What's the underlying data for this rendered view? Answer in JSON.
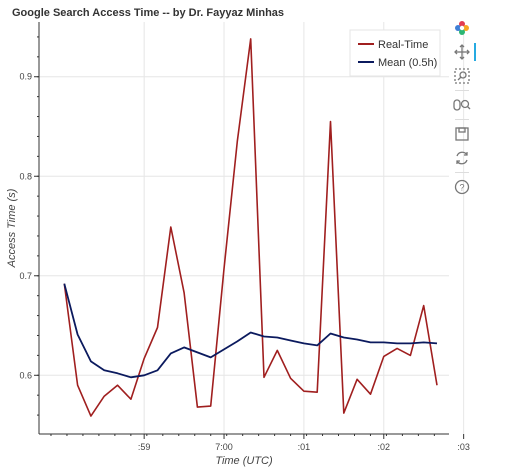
{
  "chart_data": {
    "type": "line",
    "title": "Google Search Access Time -- by Dr. Fayyaz Minhas",
    "xlabel": "Time (UTC)",
    "ylabel": "Access Time (s)",
    "x_ticks": [
      ":59",
      "7:00",
      ":01",
      ":02",
      ":03"
    ],
    "y_ticks": [
      "0.6",
      "0.7",
      "0.8",
      "0.9"
    ],
    "xlim_seconds": [
      -139,
      169
    ],
    "ylim": [
      0.541,
      0.955
    ],
    "grid": true,
    "legend_position": "top-right",
    "series": [
      {
        "name": "Real-Time",
        "color": "#a01f1f",
        "x_seconds": [
          -120,
          -110,
          -100,
          -90,
          -80,
          -70,
          -60,
          -50,
          -40,
          -30,
          -20,
          -10,
          0,
          10,
          20,
          30,
          40,
          50,
          60,
          70,
          80,
          90,
          100,
          110,
          120,
          130,
          140,
          150,
          160
        ],
        "values": [
          0.692,
          0.59,
          0.559,
          0.579,
          0.59,
          0.576,
          0.617,
          0.648,
          0.749,
          0.683,
          0.568,
          0.569,
          0.707,
          0.835,
          0.938,
          0.598,
          0.625,
          0.597,
          0.584,
          0.583,
          0.855,
          0.562,
          0.596,
          0.581,
          0.619,
          0.627,
          0.62,
          0.67,
          0.59
        ]
      },
      {
        "name": "Mean (0.5h)",
        "color": "#0b1a5e",
        "x_seconds": [
          -120,
          -110,
          -100,
          -90,
          -80,
          -70,
          -60,
          -50,
          -40,
          -30,
          -20,
          -10,
          0,
          10,
          20,
          30,
          40,
          50,
          60,
          70,
          80,
          90,
          100,
          110,
          120,
          130,
          140,
          150,
          160
        ],
        "values": [
          0.692,
          0.641,
          0.614,
          0.605,
          0.602,
          0.598,
          0.6,
          0.605,
          0.622,
          0.628,
          0.623,
          0.618,
          0.626,
          0.634,
          0.643,
          0.639,
          0.638,
          0.635,
          0.632,
          0.63,
          0.642,
          0.638,
          0.636,
          0.633,
          0.633,
          0.632,
          0.632,
          0.633,
          0.632
        ]
      }
    ]
  },
  "toolbar": {
    "tools": [
      "bokeh-logo-icon",
      "pan-icon",
      "box-zoom-icon",
      "wheel-zoom-icon",
      "save-icon",
      "reset-icon",
      "help-icon"
    ]
  }
}
